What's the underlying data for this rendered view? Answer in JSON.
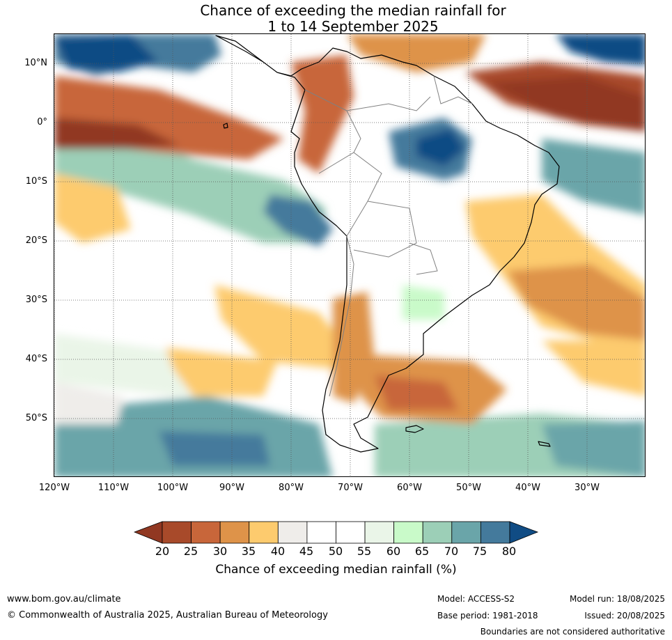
{
  "title": {
    "line1": "Chance of exceeding the median rainfall for",
    "line2": "1 to 14 September 2025"
  },
  "map": {
    "latitude_labels": [
      "10°N",
      "0°",
      "10°S",
      "20°S",
      "30°S",
      "40°S",
      "50°S"
    ],
    "longitude_labels": [
      "120°W",
      "110°W",
      "100°W",
      "90°W",
      "80°W",
      "70°W",
      "60°W",
      "50°W",
      "40°W",
      "30°W"
    ],
    "region": "South America"
  },
  "colorbar": {
    "ticks": [
      "20",
      "25",
      "30",
      "35",
      "40",
      "45",
      "50",
      "55",
      "60",
      "65",
      "70",
      "75",
      "80"
    ],
    "colors": [
      "#a84a2a",
      "#c8663a",
      "#de9349",
      "#fdcb6e",
      "#efedea",
      "#ffffff",
      "#ffffff",
      "#eaf5e8",
      "#c9fac9",
      "#9ccfb7",
      "#6aa5a9",
      "#447a9c"
    ],
    "under_color": "#913822",
    "over_color": "#104c84",
    "label": "Chance of exceeding median rainfall (%)"
  },
  "footer": {
    "website": "www.bom.gov.au/climate",
    "copyright": "© Commonwealth of Australia 2025, Australian Bureau of Meteorology",
    "model": "Model: ACCESS-S2",
    "base_period": "Base period: 1981-2018",
    "model_run": "Model run: 18/08/2025",
    "issued": "Issued: 20/08/2025",
    "disclaimer": "Boundaries are not considered authoritative"
  }
}
